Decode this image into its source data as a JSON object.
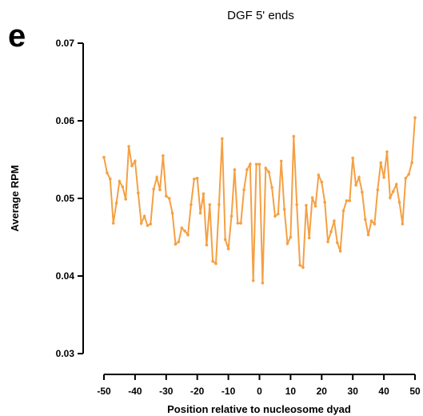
{
  "panel_letter": "e",
  "chart_data": {
    "type": "line",
    "title": "DGF 5' ends",
    "xlabel": "Position relative to nucleosome dyad",
    "ylabel": "Average RPM",
    "xlim": [
      -50,
      50
    ],
    "ylim": [
      0.03,
      0.07
    ],
    "xticks": [
      -50,
      -40,
      -30,
      -20,
      -10,
      0,
      10,
      20,
      30,
      40,
      50
    ],
    "xtick_labels": [
      "-50",
      "-40",
      "-30",
      "-20",
      "-10",
      "0",
      "10",
      "20",
      "30",
      "40",
      "50"
    ],
    "yticks": [
      0.03,
      0.04,
      0.05,
      0.06,
      0.07
    ],
    "ytick_labels": [
      "0.03",
      "0.04",
      "0.05",
      "0.06",
      "0.07"
    ],
    "grid": false,
    "series": [
      {
        "color": "#F5A043",
        "x": [
          -50,
          -49,
          -48,
          -47,
          -46,
          -45,
          -44,
          -43,
          -42,
          -41,
          -40,
          -39,
          -38,
          -37,
          -36,
          -35,
          -34,
          -33,
          -32,
          -31,
          -30,
          -29,
          -28,
          -27,
          -26,
          -25,
          -24,
          -23,
          -22,
          -21,
          -20,
          -19,
          -18,
          -17,
          -16,
          -15,
          -14,
          -13,
          -12,
          -11,
          -10,
          -9,
          -8,
          -7,
          -6,
          -5,
          -4,
          -3,
          -2,
          -1,
          0,
          1,
          2,
          3,
          4,
          5,
          6,
          7,
          8,
          9,
          10,
          11,
          12,
          13,
          14,
          15,
          16,
          17,
          18,
          19,
          20,
          21,
          22,
          23,
          24,
          25,
          26,
          27,
          28,
          29,
          30,
          31,
          32,
          33,
          34,
          35,
          36,
          37,
          38,
          39,
          40,
          41,
          42,
          43,
          44,
          45,
          46,
          47,
          48,
          49,
          50
        ],
        "y": [
          0.0553,
          0.0533,
          0.0525,
          0.0468,
          0.0494,
          0.0522,
          0.0515,
          0.0499,
          0.0567,
          0.0542,
          0.0548,
          0.0507,
          0.0468,
          0.0477,
          0.0465,
          0.0467,
          0.0512,
          0.0527,
          0.0511,
          0.0555,
          0.0503,
          0.05,
          0.0481,
          0.0441,
          0.0444,
          0.0462,
          0.0458,
          0.0453,
          0.0492,
          0.0525,
          0.0526,
          0.0481,
          0.0506,
          0.044,
          0.0492,
          0.0419,
          0.0416,
          0.0492,
          0.0577,
          0.0447,
          0.0435,
          0.0477,
          0.0537,
          0.0468,
          0.0468,
          0.0511,
          0.0537,
          0.0544,
          0.0394,
          0.0544,
          0.0544,
          0.0391,
          0.0539,
          0.0534,
          0.0514,
          0.0477,
          0.048,
          0.0548,
          0.0486,
          0.0442,
          0.045,
          0.058,
          0.0492,
          0.0414,
          0.0411,
          0.0491,
          0.0449,
          0.0501,
          0.049,
          0.053,
          0.0521,
          0.0495,
          0.0444,
          0.0457,
          0.0471,
          0.0443,
          0.0432,
          0.0484,
          0.0497,
          0.0497,
          0.0552,
          0.0517,
          0.0527,
          0.0508,
          0.0473,
          0.0453,
          0.0471,
          0.0467,
          0.0511,
          0.0546,
          0.0527,
          0.056,
          0.0501,
          0.0509,
          0.0518,
          0.0495,
          0.0467,
          0.0526,
          0.0531,
          0.0546,
          0.0604
        ]
      }
    ]
  }
}
